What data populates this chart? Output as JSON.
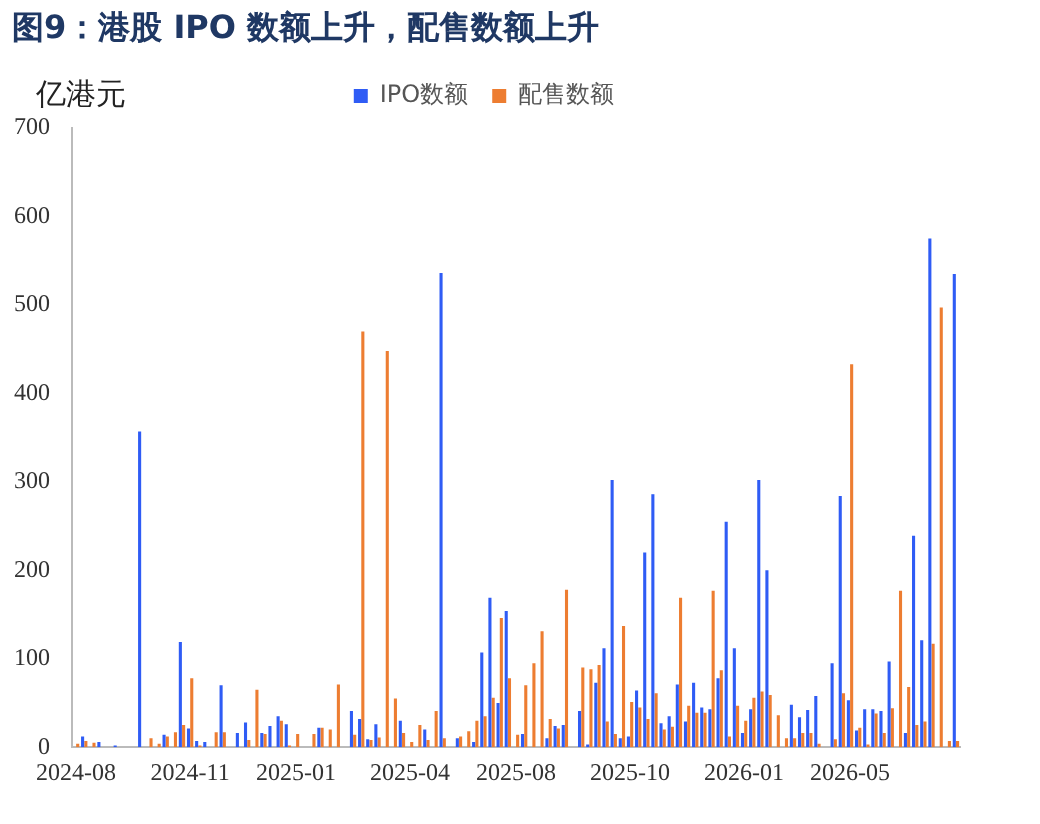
{
  "chart_data": {
    "type": "bar",
    "title": "图9：港股 IPO 数额上升，配售数额上升",
    "ylabel": "亿港元",
    "categories": [
      "2024-08",
      null,
      null,
      null,
      null,
      null,
      null,
      null,
      null,
      null,
      null,
      null,
      null,
      null,
      "2024-11",
      null,
      null,
      null,
      null,
      null,
      null,
      null,
      null,
      null,
      null,
      null,
      null,
      "2025-01",
      null,
      null,
      null,
      null,
      null,
      null,
      null,
      null,
      null,
      null,
      null,
      null,
      null,
      "2025-04",
      null,
      null,
      null,
      null,
      null,
      null,
      null,
      null,
      null,
      null,
      null,
      null,
      "2025-08",
      null,
      null,
      null,
      null,
      null,
      null,
      null,
      null,
      null,
      null,
      null,
      null,
      null,
      "2025-10",
      null,
      null,
      null,
      null,
      null,
      null,
      null,
      null,
      null,
      null,
      null,
      null,
      null,
      "2026-01",
      null,
      null,
      null,
      null,
      null,
      null,
      null,
      null,
      null,
      null,
      null,
      null,
      "2026-05",
      null,
      null,
      null,
      null,
      null,
      null,
      null,
      null,
      null,
      null,
      null,
      null,
      null
    ],
    "series": [
      {
        "name": "IPO数额",
        "color": "#2f5cf5",
        "values": [
          0,
          12,
          0,
          6,
          0,
          2,
          0,
          0,
          357,
          0,
          0,
          14,
          0,
          119,
          21,
          7,
          6,
          0,
          70,
          0,
          16,
          28,
          0,
          16,
          24,
          35,
          26,
          0,
          0,
          0,
          22,
          0,
          0,
          0,
          41,
          32,
          9,
          26,
          0,
          0,
          30,
          0,
          0,
          20,
          0,
          536,
          0,
          10,
          0,
          6,
          107,
          169,
          50,
          154,
          0,
          15,
          0,
          0,
          10,
          24,
          25,
          0,
          41,
          3,
          73,
          112,
          302,
          10,
          12,
          64,
          220,
          286,
          27,
          35,
          71,
          29,
          73,
          45,
          43,
          78,
          255,
          112,
          16,
          43,
          302,
          200,
          0,
          0,
          48,
          34,
          42,
          58,
          0,
          95,
          284,
          53,
          19,
          43,
          43,
          41,
          97,
          0,
          16,
          239,
          121,
          575,
          0,
          0,
          535
        ]
      },
      {
        "name": "配售数额",
        "color": "#ed7d31",
        "values": [
          4,
          7,
          5,
          0,
          0,
          0,
          0,
          0,
          0,
          10,
          4,
          12,
          17,
          25,
          78,
          2,
          0,
          17,
          17,
          0,
          0,
          8,
          65,
          15,
          0,
          30,
          2,
          15,
          0,
          15,
          22,
          20,
          71,
          0,
          14,
          470,
          8,
          11,
          448,
          55,
          16,
          6,
          25,
          8,
          41,
          10,
          0,
          12,
          18,
          30,
          35,
          56,
          146,
          78,
          14,
          70,
          95,
          131,
          32,
          21,
          178,
          0,
          90,
          88,
          93,
          29,
          15,
          137,
          51,
          45,
          32,
          61,
          20,
          23,
          169,
          47,
          39,
          39,
          177,
          87,
          12,
          47,
          30,
          56,
          63,
          59,
          36,
          10,
          10,
          16,
          16,
          4,
          0,
          9,
          61,
          433,
          22,
          3,
          38,
          16,
          44,
          177,
          68,
          25,
          29,
          117,
          497,
          7,
          7
        ]
      }
    ],
    "ylim": [
      0,
      700
    ],
    "yticks": [
      0,
      100,
      200,
      300,
      400,
      500,
      600,
      700
    ],
    "legend": "top"
  }
}
